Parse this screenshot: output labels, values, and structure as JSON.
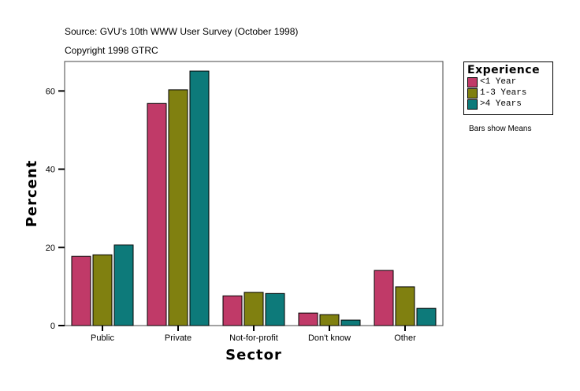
{
  "header": {
    "source": "Source: GVU's 10th WWW User Survey (October 1998)",
    "copyright": "Copyright 1998 GTRC"
  },
  "note": "Bars show Means",
  "chart_data": {
    "type": "bar",
    "xlabel": "Sector",
    "ylabel": "Percent",
    "categories": [
      "Public",
      "Private",
      "Not-for-profit",
      "Don't know",
      "Other"
    ],
    "ylim": [
      0,
      67
    ],
    "yticks": [
      0,
      20,
      40,
      60
    ],
    "legend_title": "Experience",
    "legend_position": "right",
    "series": [
      {
        "name": "<1 Year",
        "color": "#c03a68",
        "values": [
          17.7,
          56.8,
          7.6,
          3.2,
          14.1
        ]
      },
      {
        "name": "1-3 Years",
        "color": "#808010",
        "values": [
          18.1,
          60.3,
          8.5,
          2.8,
          9.9
        ]
      },
      {
        "name": ">4 Years",
        "color": "#0d7a7a",
        "values": [
          20.6,
          65.1,
          8.2,
          1.4,
          4.4
        ]
      }
    ]
  }
}
